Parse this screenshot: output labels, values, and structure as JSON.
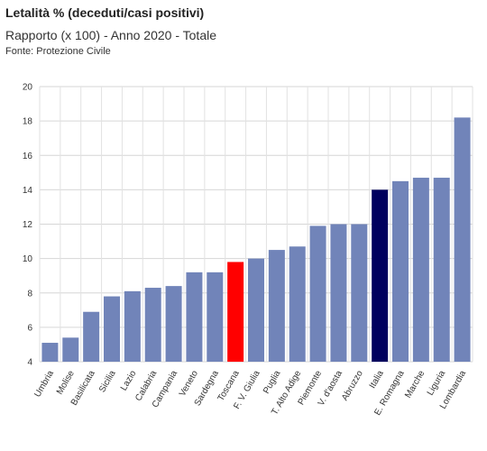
{
  "header": {
    "title": "Letalità % (deceduti/casi positivi)",
    "subtitle": "Rapporto (x 100) - Anno 2020 - Totale",
    "source": "Fonte: Protezione Civile"
  },
  "chart_data": {
    "type": "bar",
    "title": "Letalità % (deceduti/casi positivi)",
    "subtitle": "Rapporto (x 100) - Anno 2020 - Totale",
    "xlabel": "",
    "ylabel": "",
    "ylim": [
      4,
      20
    ],
    "yticks": [
      4,
      6,
      8,
      10,
      12,
      14,
      16,
      18,
      20
    ],
    "grid": true,
    "categories": [
      "Umbria",
      "Molise",
      "Basilicata",
      "Sicilia",
      "Lazio",
      "Calabria",
      "Campania",
      "Veneto",
      "Sardegna",
      "Toscana",
      "F. V. Giulia",
      "Puglia",
      "T. Alto Adige",
      "Piemonte",
      "V. d'aosta",
      "Abruzzo",
      "Italia",
      "E. Romagna",
      "Marche",
      "Liguria",
      "Lombardia"
    ],
    "values": [
      5.1,
      5.4,
      6.9,
      7.8,
      8.1,
      8.3,
      8.4,
      9.2,
      9.2,
      9.8,
      10.0,
      10.5,
      10.7,
      11.9,
      12.0,
      12.0,
      14.0,
      14.5,
      14.7,
      14.7,
      18.2
    ],
    "colors": {
      "default": "#7184b9",
      "Toscana": "#ff0000",
      "Italia": "#00005e"
    }
  }
}
